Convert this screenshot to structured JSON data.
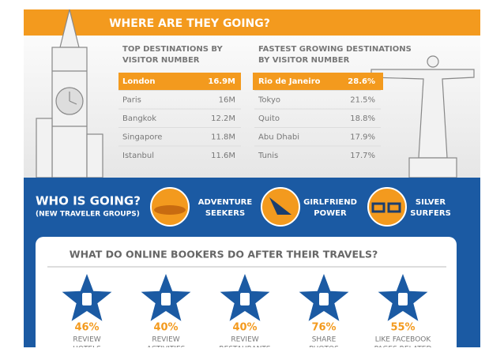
{
  "header": {
    "title": "WHERE ARE THEY GOING?"
  },
  "table_left": {
    "title_lines": [
      "TOP DESTINATIONS BY",
      "VISITOR NUMBER"
    ],
    "rows": [
      [
        "London",
        "16.9M"
      ],
      [
        "Paris",
        "16M"
      ],
      [
        "Bangkok",
        "12.2M"
      ],
      [
        "Singapore",
        "11.8M"
      ],
      [
        "Istanbul",
        "11.6M"
      ]
    ]
  },
  "table_right": {
    "title_lines": [
      "FASTEST GROWING DESTINATIONS",
      "BY VISITOR NUMBER"
    ],
    "rows": [
      [
        "Rio de Janeiro",
        "28.6%"
      ],
      [
        "Tokyo",
        "21.5%"
      ],
      [
        "Quito",
        "18.8%"
      ],
      [
        "Abu Dhabi",
        "17.9%"
      ],
      [
        "Tunis",
        "17.7%"
      ]
    ]
  },
  "who": {
    "title": "WHO IS GOING?",
    "subtitle": "(NEW TRAVELER GROUPS)",
    "groups": [
      [
        "ADVENTURE",
        "SEEKERS"
      ],
      [
        "GIRLFRIEND",
        "POWER"
      ],
      [
        "SILVER",
        "SURFERS"
      ]
    ]
  },
  "after": {
    "title": "WHAT DO ONLINE BOOKERS DO AFTER THEIR TRAVELS?",
    "items": [
      {
        "percent": "46%",
        "label_lines": [
          "REVIEW",
          "HOTELS"
        ]
      },
      {
        "percent": "40%",
        "label_lines": [
          "REVIEW",
          "ACTIVITIES"
        ]
      },
      {
        "percent": "40%",
        "label_lines": [
          "REVIEW",
          "RESTAURANTS"
        ]
      },
      {
        "percent": "76%",
        "label_lines": [
          "SHARE",
          "PHOTOS"
        ]
      },
      {
        "percent": "55%",
        "label_lines": [
          "LIKE FACEBOOK",
          "PAGES RELATED"
        ]
      }
    ]
  }
}
